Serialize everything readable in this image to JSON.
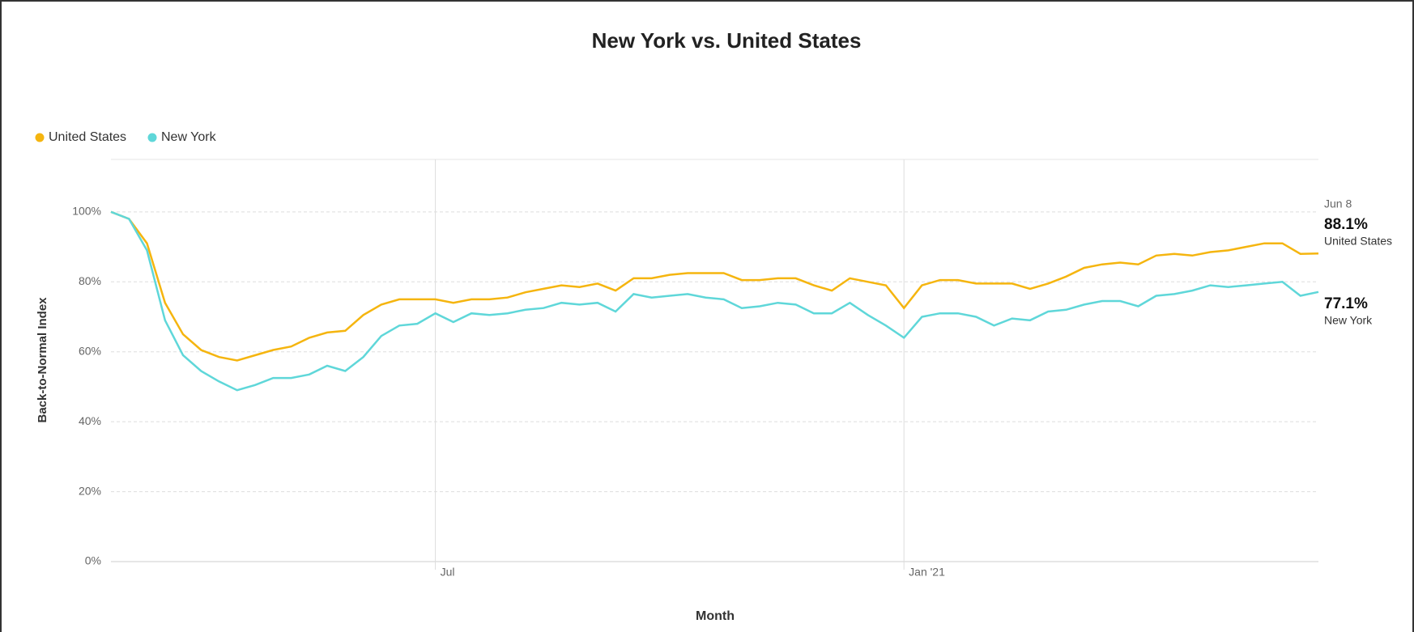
{
  "chart_data": {
    "type": "line",
    "title": "New York vs. United States",
    "x_label": "Month",
    "y_label": "Back-to-Normal Index",
    "end_date": "Jun 8",
    "categories": [
      null,
      null,
      null,
      null,
      null,
      null,
      null,
      null,
      null,
      null,
      null,
      null,
      null,
      null,
      null,
      null,
      null,
      null,
      "Jul",
      null,
      null,
      null,
      null,
      null,
      null,
      null,
      null,
      null,
      null,
      null,
      null,
      null,
      null,
      null,
      null,
      null,
      null,
      null,
      null,
      null,
      null,
      null,
      null,
      null,
      "Jan '21",
      null,
      null,
      null,
      null,
      null,
      null,
      null,
      null,
      null,
      null,
      null,
      null,
      null,
      null,
      null,
      null,
      null,
      null,
      null,
      null,
      null,
      null,
      null
    ],
    "series": [
      {
        "name": "United States",
        "color": "#f5b50f",
        "values": [
          100,
          98,
          91,
          74,
          65,
          60.5,
          58.5,
          57.5,
          59,
          60.5,
          61.5,
          64,
          65.5,
          66,
          70.5,
          73.5,
          75,
          75,
          75,
          74,
          75,
          75,
          75.5,
          77,
          78,
          79,
          78.5,
          79.5,
          77.5,
          81,
          81,
          82,
          82.5,
          82.5,
          82.5,
          80.5,
          80.5,
          81,
          81,
          79,
          77.5,
          81,
          80,
          79,
          72.5,
          79,
          80.5,
          80.5,
          79.5,
          79.5,
          79.5,
          78,
          79.5,
          81.5,
          84,
          85,
          85.5,
          85,
          87.5,
          88,
          87.5,
          88.5,
          89,
          90,
          91,
          91,
          88,
          88.1
        ],
        "value_labels": [
          null,
          null,
          null,
          null,
          null,
          null,
          null,
          null,
          null,
          null,
          null,
          null,
          null,
          null,
          null,
          null,
          null,
          null,
          null,
          null,
          null,
          null,
          null,
          null,
          null,
          null,
          null,
          null,
          null,
          null,
          null,
          null,
          null,
          null,
          null,
          null,
          null,
          null,
          null,
          null,
          null,
          null,
          null,
          null,
          null,
          null,
          null,
          null,
          null,
          null,
          null,
          null,
          null,
          null,
          null,
          null,
          null,
          null,
          null,
          null,
          null,
          null,
          null,
          null,
          null,
          null,
          null,
          "88.1%"
        ]
      },
      {
        "name": "New York",
        "color": "#5fd7d9",
        "values": [
          100,
          98,
          89,
          69,
          59,
          54.5,
          51.5,
          49,
          50.5,
          52.5,
          52.5,
          53.5,
          56,
          54.5,
          58.5,
          64.5,
          67.5,
          68,
          71,
          68.5,
          71,
          70.5,
          71,
          72,
          72.5,
          74,
          73.5,
          74,
          71.5,
          76.5,
          75.5,
          76,
          76.5,
          75.5,
          75,
          72.5,
          73,
          74,
          73.5,
          71,
          71,
          74,
          70.5,
          67.5,
          64,
          70,
          71,
          71,
          70,
          67.5,
          69.5,
          69,
          71.5,
          72,
          73.5,
          74.5,
          74.5,
          73,
          76,
          76.5,
          77.5,
          79,
          78.5,
          79,
          79.5,
          80,
          76,
          77.1
        ],
        "value_labels": [
          null,
          null,
          null,
          null,
          null,
          null,
          null,
          null,
          null,
          null,
          null,
          null,
          null,
          null,
          null,
          null,
          null,
          null,
          null,
          null,
          null,
          null,
          null,
          null,
          null,
          null,
          null,
          null,
          null,
          null,
          null,
          null,
          null,
          null,
          null,
          null,
          null,
          null,
          null,
          null,
          null,
          null,
          null,
          null,
          null,
          null,
          null,
          null,
          null,
          null,
          null,
          null,
          null,
          null,
          null,
          null,
          null,
          null,
          null,
          null,
          null,
          null,
          null,
          null,
          null,
          null,
          null,
          "77.1%"
        ]
      }
    ],
    "ylim": [
      0,
      115
    ],
    "yticks": [
      {
        "value": 0,
        "label": "0%"
      },
      {
        "value": 20,
        "label": "20%"
      },
      {
        "value": 40,
        "label": "40%"
      },
      {
        "value": 60,
        "label": "60%"
      },
      {
        "value": 80,
        "label": "80%"
      },
      {
        "value": 100,
        "label": "100%"
      }
    ],
    "grid": true,
    "legend": "top-left"
  }
}
